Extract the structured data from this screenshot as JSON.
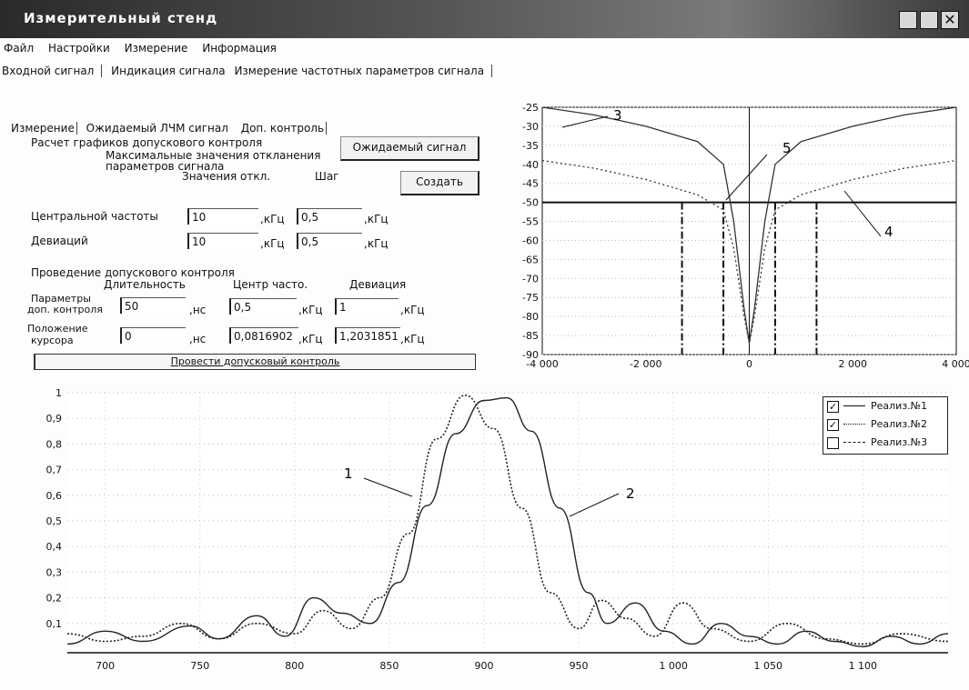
{
  "window": {
    "title": "Измерительный стенд"
  },
  "menu": [
    "Файл",
    "Настройки",
    "Измерение",
    "Информация"
  ],
  "top_tabs": [
    "Входной сигнал",
    "Индикация сигнала",
    "Измерение частотных параметров сигнала"
  ],
  "sub_tabs": [
    "Измерение",
    "Ожидаемый ЛЧМ сигнал",
    "Доп. контроль"
  ],
  "panel": {
    "calc_title": "Расчет графиков допускового контроля",
    "max_dev_line1": "Максимальные значения откланения",
    "max_dev_line2": "параметров сигнала",
    "expected_button": "Ожидаемый сигнал",
    "col_values": "Значения откл.",
    "col_step": "Шаг",
    "create_button": "Создать",
    "center_freq_label": "Центральной частоты",
    "center_freq_value": "10",
    "center_freq_step": "0,5",
    "deviation_label": "Девиаций",
    "deviation_value": "10",
    "deviation_step": "0,5",
    "unit_khz": ",кГц",
    "unit_ns": ",нс",
    "control_title": "Проведение допускового контроля",
    "col_duration": "Длительность",
    "col_center": "Центр часто.",
    "col_deviation": "Девиация",
    "params_label_1": "Параметры",
    "params_label_2": "доп. контроля",
    "params_duration": "50",
    "params_center": "0,5",
    "params_deviation": "1",
    "cursor_label_1": "Положение",
    "cursor_label_2": "курсора",
    "cursor_duration": "0",
    "cursor_center": "0,0816902",
    "cursor_deviation": "1,2031851",
    "run_button": "Провести допусковый контроль"
  },
  "annotations": {
    "top_a": "3",
    "top_b": "5",
    "top_c": "4",
    "bottom_a": "1",
    "bottom_b": "2"
  },
  "legend": [
    {
      "label": "Реализ.№1",
      "checked": true,
      "style": "solid"
    },
    {
      "label": "Реализ.№2",
      "checked": true,
      "style": "dotted"
    },
    {
      "label": "Реализ.№3",
      "checked": false,
      "style": "dashdot"
    }
  ],
  "chart_data": [
    {
      "type": "line",
      "title": "",
      "xlim": [
        -4000,
        4000
      ],
      "ylim": [
        -90,
        -25
      ],
      "x_ticks": [
        "-4 000",
        "-2 000",
        "0",
        "2 000",
        "4 000"
      ],
      "y_ticks": [
        "-25",
        "-30",
        "-35",
        "-40",
        "-45",
        "-50",
        "-55",
        "-60",
        "-65",
        "-70",
        "-75",
        "-80",
        "-85",
        "-90"
      ],
      "threshold": -50,
      "vertical_markers": [
        -1300,
        -500,
        500,
        1300
      ],
      "series": [
        {
          "x": [
            -4000,
            -3000,
            -2000,
            -1000,
            -500,
            -300,
            -100,
            0,
            100,
            300,
            500,
            1000,
            2000,
            3000,
            4000
          ],
          "y": [
            -25,
            -27,
            -30,
            -34,
            -40,
            -55,
            -78,
            -87,
            -78,
            -55,
            -40,
            -34,
            -30,
            -27,
            -25
          ]
        },
        {
          "x": [
            -4000,
            -3000,
            -2000,
            -1000,
            -500,
            -300,
            -100,
            0,
            100,
            300,
            500,
            1000,
            2000,
            3000,
            4000
          ],
          "y": [
            -39,
            -41,
            -44,
            -48,
            -52,
            -62,
            -80,
            -87,
            -80,
            -62,
            -52,
            -48,
            -44,
            -41,
            -39
          ]
        }
      ]
    },
    {
      "type": "line",
      "title": "",
      "xlim": [
        680,
        1145
      ],
      "ylim": [
        0,
        1
      ],
      "x_ticks": [
        "700",
        "750",
        "800",
        "850",
        "900",
        "950",
        "1 000",
        "1 050",
        "1 100"
      ],
      "y_ticks": [
        "1",
        "0,9",
        "0,8",
        "0,7",
        "0,6",
        "0,5",
        "0,4",
        "0,3",
        "0,2",
        "0,1"
      ],
      "series": [
        {
          "name": "Реализ.№1",
          "x": [
            680,
            700,
            720,
            745,
            760,
            780,
            795,
            810,
            825,
            840,
            855,
            870,
            885,
            900,
            912,
            925,
            940,
            955,
            965,
            980,
            995,
            1010,
            1025,
            1040,
            1055,
            1070,
            1085,
            1100,
            1115,
            1130,
            1145
          ],
          "y": [
            0.02,
            0.07,
            0.03,
            0.09,
            0.04,
            0.13,
            0.05,
            0.2,
            0.14,
            0.1,
            0.26,
            0.56,
            0.84,
            0.97,
            0.98,
            0.85,
            0.55,
            0.22,
            0.1,
            0.18,
            0.07,
            0.02,
            0.1,
            0.05,
            0.02,
            0.07,
            0.03,
            0.01,
            0.05,
            0.02,
            0.06
          ]
        },
        {
          "name": "Реализ.№2",
          "x": [
            680,
            700,
            720,
            740,
            760,
            780,
            800,
            815,
            830,
            845,
            860,
            875,
            890,
            905,
            920,
            935,
            950,
            962,
            975,
            990,
            1005,
            1020,
            1040,
            1060,
            1080,
            1100,
            1120,
            1145
          ],
          "y": [
            0.06,
            0.03,
            0.05,
            0.1,
            0.04,
            0.1,
            0.06,
            0.15,
            0.08,
            0.2,
            0.45,
            0.82,
            0.99,
            0.86,
            0.55,
            0.22,
            0.08,
            0.19,
            0.12,
            0.05,
            0.18,
            0.08,
            0.03,
            0.1,
            0.04,
            0.02,
            0.06,
            0.03
          ]
        }
      ]
    }
  ]
}
